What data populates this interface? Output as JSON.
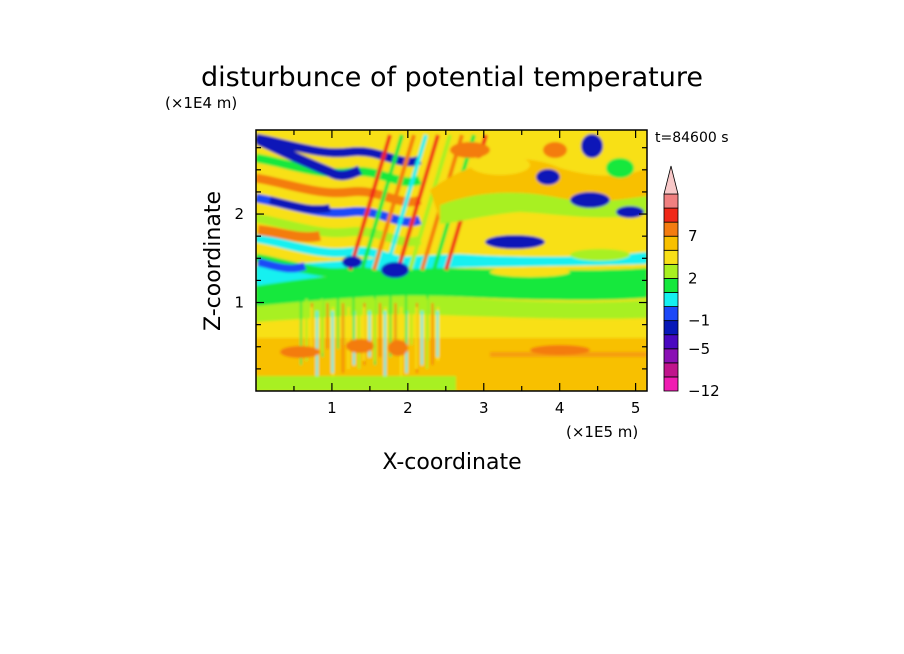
{
  "chart_data": {
    "type": "heatmap",
    "title": "disturbunce of potential temperature",
    "xlabel": "X-coordinate",
    "ylabel": "Z-coordinate",
    "x_unit": "(×1E5 m)",
    "y_unit": "(×1E4 m)",
    "time_label": "t=84600 s",
    "xlim": [
      0,
      5.15
    ],
    "ylim": [
      0,
      2.95
    ],
    "x_ticks": [
      "1",
      "2",
      "3",
      "4",
      "5"
    ],
    "x_tick_values": [
      1,
      2,
      3,
      4,
      5
    ],
    "y_ticks": [
      "1",
      "2"
    ],
    "y_tick_values": [
      1,
      2
    ],
    "colorbar": {
      "levels": [
        -12,
        -9,
        -7,
        -5,
        -3,
        -1,
        0,
        1,
        2,
        4,
        6,
        7,
        9,
        11
      ],
      "tick_labels": [
        "-12",
        "-5",
        "-1",
        "2",
        "7"
      ],
      "tick_values": [
        -12,
        -5,
        -1,
        2,
        7
      ],
      "colors": [
        "#f01cb2",
        "#c0148c",
        "#8a10b4",
        "#4a08c0",
        "#0818b8",
        "#1c48f8",
        "#14f0f0",
        "#14e83c",
        "#a8f020",
        "#f8e018",
        "#f8c000",
        "#f47c10",
        "#f02818",
        "#f08080",
        "#f8c8c8"
      ],
      "extend": "max"
    }
  }
}
